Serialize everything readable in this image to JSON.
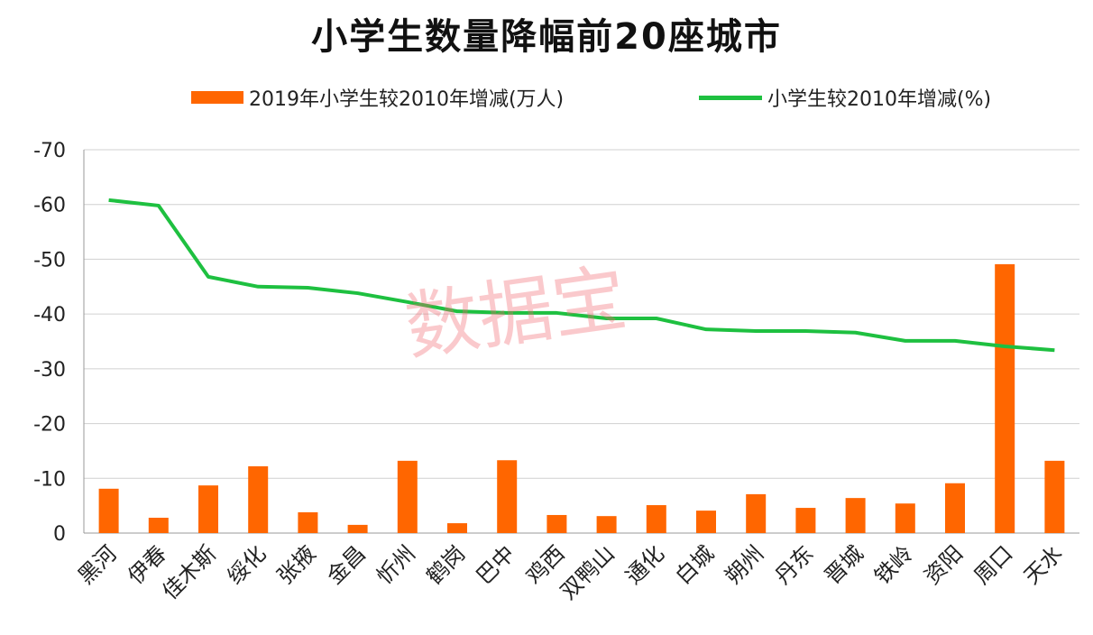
{
  "chart_data": {
    "type": "bar",
    "title": "小学生数量降幅前20座城市",
    "categories": [
      "黑河",
      "伊春",
      "佳木斯",
      "绥化",
      "张掖",
      "金昌",
      "忻州",
      "鹤岗",
      "巴中",
      "鸡西",
      "双鸭山",
      "通化",
      "白城",
      "朔州",
      "丹东",
      "晋城",
      "铁岭",
      "资阳",
      "周口",
      "天水"
    ],
    "series": [
      {
        "name": "2019年小学生较2010年增减(万人)",
        "type": "bar",
        "color": "#ff6600",
        "values": [
          -8.1,
          -2.8,
          -8.7,
          -12.2,
          -3.8,
          -1.5,
          -13.2,
          -1.8,
          -13.3,
          -3.3,
          -3.1,
          -5.1,
          -4.1,
          -7.1,
          -4.6,
          -6.4,
          -5.4,
          -9.1,
          -49.1,
          -13.2
        ]
      },
      {
        "name": "小学生较2010年增减(%)",
        "type": "line",
        "color": "#1ec040",
        "values": [
          -60.8,
          -59.8,
          -46.8,
          -45.0,
          -44.8,
          -43.8,
          -42.2,
          -40.5,
          -40.2,
          -40.2,
          -39.2,
          -39.2,
          -37.2,
          -36.9,
          -36.9,
          -36.6,
          -35.1,
          -35.1,
          -34.1,
          -33.4
        ]
      }
    ],
    "ylim": [
      0,
      -70
    ],
    "yticks": [
      -70,
      -60,
      -50,
      -40,
      -30,
      -20,
      -10,
      0
    ],
    "grid": true,
    "legend": "top",
    "xlabel": "",
    "ylabel": ""
  },
  "watermark": "数据宝"
}
